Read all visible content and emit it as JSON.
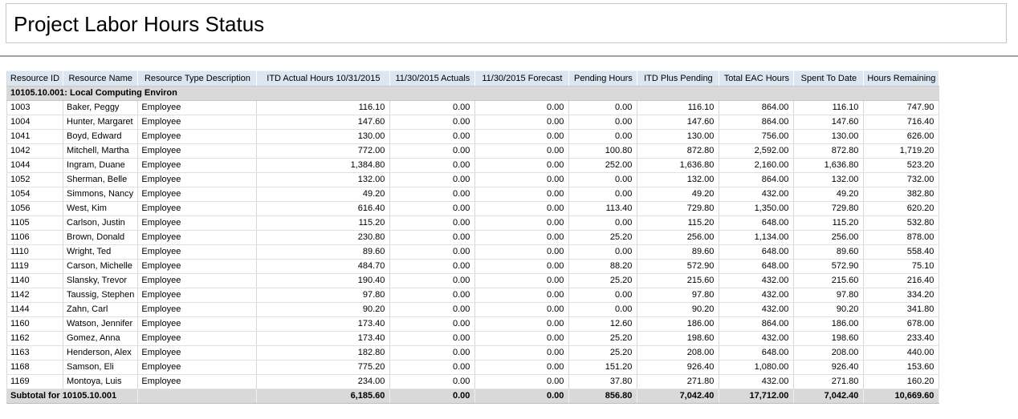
{
  "page_title": "Project Labor Hours Status",
  "colors": {
    "header_bg": "#dce6f1",
    "group_row_bg": "#d9d9d9",
    "subtotal_row_bg": "#d9d9d9",
    "divider": "#a3a3a3",
    "cell_border": "#d8d8d8"
  },
  "table": {
    "columns": [
      {
        "label": "Resource ID",
        "align": "left"
      },
      {
        "label": "Resource Name",
        "align": "left"
      },
      {
        "label": "Resource Type Description",
        "align": "left"
      },
      {
        "label": "ITD Actual Hours 10/31/2015",
        "align": "right"
      },
      {
        "label": "11/30/2015 Actuals",
        "align": "right"
      },
      {
        "label": "11/30/2015 Forecast",
        "align": "right"
      },
      {
        "label": "Pending Hours",
        "align": "right"
      },
      {
        "label": "ITD Plus Pending",
        "align": "right"
      },
      {
        "label": "Total EAC Hours",
        "align": "right"
      },
      {
        "label": "Spent To Date",
        "align": "right"
      },
      {
        "label": "Hours Remaining",
        "align": "right"
      }
    ],
    "group_header": "10105.10.001:  Local Computing Environ",
    "rows": [
      [
        "1003",
        "Baker, Peggy",
        "Employee",
        "116.10",
        "0.00",
        "0.00",
        "0.00",
        "116.10",
        "864.00",
        "116.10",
        "747.90"
      ],
      [
        "1004",
        "Hunter, Margaret",
        "Employee",
        "147.60",
        "0.00",
        "0.00",
        "0.00",
        "147.60",
        "864.00",
        "147.60",
        "716.40"
      ],
      [
        "1041",
        "Boyd, Edward",
        "Employee",
        "130.00",
        "0.00",
        "0.00",
        "0.00",
        "130.00",
        "756.00",
        "130.00",
        "626.00"
      ],
      [
        "1042",
        "Mitchell, Martha",
        "Employee",
        "772.00",
        "0.00",
        "0.00",
        "100.80",
        "872.80",
        "2,592.00",
        "872.80",
        "1,719.20"
      ],
      [
        "1044",
        "Ingram, Duane",
        "Employee",
        "1,384.80",
        "0.00",
        "0.00",
        "252.00",
        "1,636.80",
        "2,160.00",
        "1,636.80",
        "523.20"
      ],
      [
        "1052",
        "Sherman, Belle",
        "Employee",
        "132.00",
        "0.00",
        "0.00",
        "0.00",
        "132.00",
        "864.00",
        "132.00",
        "732.00"
      ],
      [
        "1054",
        "Simmons, Nancy",
        "Employee",
        "49.20",
        "0.00",
        "0.00",
        "0.00",
        "49.20",
        "432.00",
        "49.20",
        "382.80"
      ],
      [
        "1056",
        "West, Kim",
        "Employee",
        "616.40",
        "0.00",
        "0.00",
        "113.40",
        "729.80",
        "1,350.00",
        "729.80",
        "620.20"
      ],
      [
        "1105",
        "Carlson, Justin",
        "Employee",
        "115.20",
        "0.00",
        "0.00",
        "0.00",
        "115.20",
        "648.00",
        "115.20",
        "532.80"
      ],
      [
        "1106",
        "Brown, Donald",
        "Employee",
        "230.80",
        "0.00",
        "0.00",
        "25.20",
        "256.00",
        "1,134.00",
        "256.00",
        "878.00"
      ],
      [
        "1110",
        "Wright, Ted",
        "Employee",
        "89.60",
        "0.00",
        "0.00",
        "0.00",
        "89.60",
        "648.00",
        "89.60",
        "558.40"
      ],
      [
        "1119",
        "Carson, Michelle",
        "Employee",
        "484.70",
        "0.00",
        "0.00",
        "88.20",
        "572.90",
        "648.00",
        "572.90",
        "75.10"
      ],
      [
        "1140",
        "Slansky, Trevor",
        "Employee",
        "190.40",
        "0.00",
        "0.00",
        "25.20",
        "215.60",
        "432.00",
        "215.60",
        "216.40"
      ],
      [
        "1142",
        "Taussig, Stephen",
        "Employee",
        "97.80",
        "0.00",
        "0.00",
        "0.00",
        "97.80",
        "432.00",
        "97.80",
        "334.20"
      ],
      [
        "1144",
        "Zahn, Carl",
        "Employee",
        "90.20",
        "0.00",
        "0.00",
        "0.00",
        "90.20",
        "432.00",
        "90.20",
        "341.80"
      ],
      [
        "1160",
        "Watson, Jennifer",
        "Employee",
        "173.40",
        "0.00",
        "0.00",
        "12.60",
        "186.00",
        "864.00",
        "186.00",
        "678.00"
      ],
      [
        "1162",
        "Gomez, Anna",
        "Employee",
        "173.40",
        "0.00",
        "0.00",
        "25.20",
        "198.60",
        "432.00",
        "198.60",
        "233.40"
      ],
      [
        "1163",
        "Henderson, Alex",
        "Employee",
        "182.80",
        "0.00",
        "0.00",
        "25.20",
        "208.00",
        "648.00",
        "208.00",
        "440.00"
      ],
      [
        "1168",
        "Samson, Eli",
        "Employee",
        "775.20",
        "0.00",
        "0.00",
        "151.20",
        "926.40",
        "1,080.00",
        "926.40",
        "153.60"
      ],
      [
        "1169",
        "Montoya, Luis",
        "Employee",
        "234.00",
        "0.00",
        "0.00",
        "37.80",
        "271.80",
        "432.00",
        "271.80",
        "160.20"
      ]
    ],
    "subtotal": {
      "label": "Subtotal for 10105.10.001",
      "values": [
        "6,185.60",
        "0.00",
        "0.00",
        "856.80",
        "7,042.40",
        "17,712.00",
        "7,042.40",
        "10,669.60"
      ]
    }
  }
}
